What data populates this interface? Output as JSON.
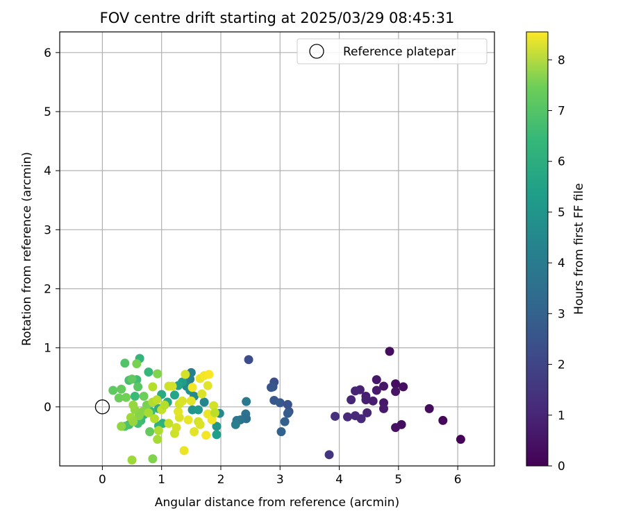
{
  "chart_data": {
    "type": "scatter",
    "title": "FOV centre drift starting at 2025/03/29 08:45:31",
    "xlabel": "Angular distance from reference (arcmin)",
    "ylabel": "Rotation from reference (arcmin)",
    "xlim": [
      -0.72,
      6.62
    ],
    "ylim": [
      -1.0,
      6.35
    ],
    "xticks": [
      "0",
      "1",
      "2",
      "3",
      "4",
      "5",
      "6"
    ],
    "yticks": [
      "0",
      "1",
      "2",
      "3",
      "4",
      "5",
      "6"
    ],
    "grid": true,
    "legend": {
      "placement": "top-right",
      "entries": [
        "Reference platepar"
      ]
    },
    "reference_point": {
      "x": 0,
      "y": 0,
      "label": "Reference platepar",
      "marker": "open-circle"
    },
    "colorbar": {
      "label": "Hours from first FF file",
      "colormap": "viridis",
      "range": [
        0,
        8.55
      ],
      "ticks": [
        "0",
        "1",
        "2",
        "3",
        "4",
        "5",
        "6",
        "7",
        "8"
      ]
    },
    "points": [
      {
        "x": 4.85,
        "y": 0.94,
        "c": 0.3
      },
      {
        "x": 6.05,
        "y": -0.55,
        "c": 0.05
      },
      {
        "x": 5.75,
        "y": -0.23,
        "c": 0.15
      },
      {
        "x": 5.52,
        "y": -0.03,
        "c": 0.25
      },
      {
        "x": 5.05,
        "y": -0.3,
        "c": 0.3
      },
      {
        "x": 4.95,
        "y": -0.35,
        "c": 0.4
      },
      {
        "x": 5.08,
        "y": 0.34,
        "c": 0.35
      },
      {
        "x": 4.95,
        "y": 0.39,
        "c": 0.3
      },
      {
        "x": 4.95,
        "y": 0.26,
        "c": 0.45
      },
      {
        "x": 4.75,
        "y": 0.35,
        "c": 0.5
      },
      {
        "x": 4.63,
        "y": 0.46,
        "c": 0.55
      },
      {
        "x": 4.63,
        "y": 0.28,
        "c": 0.6
      },
      {
        "x": 4.75,
        "y": 0.07,
        "c": 0.55
      },
      {
        "x": 4.75,
        "y": -0.03,
        "c": 0.6
      },
      {
        "x": 4.57,
        "y": 0.1,
        "c": 0.65
      },
      {
        "x": 4.45,
        "y": 0.18,
        "c": 0.7
      },
      {
        "x": 4.45,
        "y": 0.12,
        "c": 0.75
      },
      {
        "x": 4.35,
        "y": 0.29,
        "c": 0.8
      },
      {
        "x": 4.27,
        "y": 0.27,
        "c": 0.85
      },
      {
        "x": 4.2,
        "y": 0.12,
        "c": 0.9
      },
      {
        "x": 4.47,
        "y": -0.1,
        "c": 0.85
      },
      {
        "x": 4.37,
        "y": -0.2,
        "c": 0.95
      },
      {
        "x": 4.27,
        "y": -0.15,
        "c": 1.0
      },
      {
        "x": 4.14,
        "y": -0.17,
        "c": 1.05
      },
      {
        "x": 3.93,
        "y": -0.16,
        "c": 1.2
      },
      {
        "x": 3.83,
        "y": -0.81,
        "c": 1.3
      },
      {
        "x": 2.47,
        "y": 0.8,
        "c": 2.0
      },
      {
        "x": 2.9,
        "y": 0.42,
        "c": 2.1
      },
      {
        "x": 2.88,
        "y": 0.34,
        "c": 2.2
      },
      {
        "x": 2.85,
        "y": 0.33,
        "c": 2.3
      },
      {
        "x": 2.9,
        "y": 0.11,
        "c": 2.35
      },
      {
        "x": 3.0,
        "y": 0.07,
        "c": 2.4
      },
      {
        "x": 3.13,
        "y": 0.04,
        "c": 2.2
      },
      {
        "x": 3.15,
        "y": -0.08,
        "c": 2.15
      },
      {
        "x": 3.13,
        "y": -0.11,
        "c": 2.5
      },
      {
        "x": 3.08,
        "y": -0.25,
        "c": 2.6
      },
      {
        "x": 3.02,
        "y": -0.42,
        "c": 2.7
      },
      {
        "x": 2.43,
        "y": 0.09,
        "c": 3.5
      },
      {
        "x": 2.42,
        "y": -0.12,
        "c": 3.3
      },
      {
        "x": 2.43,
        "y": -0.2,
        "c": 3.1
      },
      {
        "x": 2.33,
        "y": -0.22,
        "c": 3.2
      },
      {
        "x": 2.27,
        "y": -0.23,
        "c": 3.4
      },
      {
        "x": 2.25,
        "y": -0.3,
        "c": 3.6
      },
      {
        "x": 1.98,
        "y": -0.11,
        "c": 4.0
      },
      {
        "x": 1.93,
        "y": -0.33,
        "c": 4.5
      },
      {
        "x": 1.93,
        "y": -0.47,
        "c": 4.8
      },
      {
        "x": 1.72,
        "y": 0.08,
        "c": 3.9
      },
      {
        "x": 1.5,
        "y": 0.58,
        "c": 3.7
      },
      {
        "x": 1.48,
        "y": 0.47,
        "c": 3.8
      },
      {
        "x": 1.42,
        "y": 0.35,
        "c": 4.0
      },
      {
        "x": 1.48,
        "y": 0.28,
        "c": 4.3
      },
      {
        "x": 1.55,
        "y": 0.18,
        "c": 4.1
      },
      {
        "x": 1.52,
        "y": -0.05,
        "c": 4.4
      },
      {
        "x": 1.62,
        "y": -0.05,
        "c": 4.6
      },
      {
        "x": 1.35,
        "y": 0.42,
        "c": 4.7
      },
      {
        "x": 1.28,
        "y": 0.36,
        "c": 4.9
      },
      {
        "x": 1.22,
        "y": 0.2,
        "c": 5.0
      },
      {
        "x": 1.1,
        "y": 0.08,
        "c": 5.1
      },
      {
        "x": 1.0,
        "y": 0.21,
        "c": 5.2
      },
      {
        "x": 0.95,
        "y": -0.03,
        "c": 5.3
      },
      {
        "x": 1.02,
        "y": -0.28,
        "c": 5.4
      },
      {
        "x": 0.95,
        "y": -0.32,
        "c": 5.5
      },
      {
        "x": 0.82,
        "y": -0.08,
        "c": 5.7
      },
      {
        "x": 0.7,
        "y": -0.13,
        "c": 5.6
      },
      {
        "x": 0.65,
        "y": -0.23,
        "c": 5.8
      },
      {
        "x": 0.6,
        "y": -0.28,
        "c": 5.9
      },
      {
        "x": 0.45,
        "y": -0.3,
        "c": 6.0
      },
      {
        "x": 0.38,
        "y": -0.33,
        "c": 6.1
      },
      {
        "x": 0.55,
        "y": 0.18,
        "c": 5.8
      },
      {
        "x": 0.63,
        "y": 0.82,
        "c": 5.6
      },
      {
        "x": 0.78,
        "y": 0.59,
        "c": 5.7
      },
      {
        "x": 0.58,
        "y": 0.46,
        "c": 5.9
      },
      {
        "x": 0.45,
        "y": 0.45,
        "c": 6.0
      },
      {
        "x": 0.38,
        "y": 0.74,
        "c": 6.2
      },
      {
        "x": 0.6,
        "y": 0.34,
        "c": 6.3
      },
      {
        "x": 0.5,
        "y": 0.47,
        "c": 6.4
      },
      {
        "x": 0.32,
        "y": 0.3,
        "c": 6.5
      },
      {
        "x": 0.18,
        "y": 0.28,
        "c": 6.4
      },
      {
        "x": 0.28,
        "y": 0.15,
        "c": 6.6
      },
      {
        "x": 0.4,
        "y": 0.16,
        "c": 6.7
      },
      {
        "x": 0.58,
        "y": 0.73,
        "c": 6.8
      },
      {
        "x": 0.93,
        "y": 0.56,
        "c": 6.9
      },
      {
        "x": 0.7,
        "y": 0.18,
        "c": 6.6
      },
      {
        "x": 0.75,
        "y": 0.03,
        "c": 6.8
      },
      {
        "x": 0.8,
        "y": -0.42,
        "c": 6.5
      },
      {
        "x": 0.68,
        "y": -0.08,
        "c": 7.0
      },
      {
        "x": 0.55,
        "y": -0.05,
        "c": 7.1
      },
      {
        "x": 0.52,
        "y": 0.03,
        "c": 7.2
      },
      {
        "x": 0.62,
        "y": -0.15,
        "c": 7.0
      },
      {
        "x": 0.48,
        "y": -0.18,
        "c": 7.3
      },
      {
        "x": 0.32,
        "y": -0.33,
        "c": 7.1
      },
      {
        "x": 0.52,
        "y": -0.25,
        "c": 7.2
      },
      {
        "x": 0.5,
        "y": -0.9,
        "c": 7.3
      },
      {
        "x": 0.85,
        "y": -0.88,
        "c": 6.9
      },
      {
        "x": 0.93,
        "y": -0.55,
        "c": 7.4
      },
      {
        "x": 0.95,
        "y": -0.4,
        "c": 7.5
      },
      {
        "x": 0.88,
        "y": -0.2,
        "c": 7.6
      },
      {
        "x": 0.78,
        "y": -0.1,
        "c": 7.4
      },
      {
        "x": 0.85,
        "y": 0.08,
        "c": 7.5
      },
      {
        "x": 0.85,
        "y": 0.34,
        "c": 7.6
      },
      {
        "x": 0.92,
        "y": 0.12,
        "c": 7.7
      },
      {
        "x": 1.0,
        "y": -0.05,
        "c": 7.8
      },
      {
        "x": 1.05,
        "y": 0.03,
        "c": 7.6
      },
      {
        "x": 1.12,
        "y": -0.28,
        "c": 7.8
      },
      {
        "x": 1.12,
        "y": 0.35,
        "c": 7.9
      },
      {
        "x": 1.18,
        "y": 0.35,
        "c": 8.0
      },
      {
        "x": 1.22,
        "y": -0.45,
        "c": 7.9
      },
      {
        "x": 1.25,
        "y": -0.35,
        "c": 8.0
      },
      {
        "x": 1.3,
        "y": -0.18,
        "c": 8.1
      },
      {
        "x": 1.28,
        "y": -0.08,
        "c": 8.2
      },
      {
        "x": 1.3,
        "y": 0.05,
        "c": 8.0
      },
      {
        "x": 1.35,
        "y": 0.1,
        "c": 8.1
      },
      {
        "x": 1.4,
        "y": 0.55,
        "c": 8.0
      },
      {
        "x": 1.45,
        "y": -0.22,
        "c": 8.3
      },
      {
        "x": 1.5,
        "y": 0.1,
        "c": 8.2
      },
      {
        "x": 1.52,
        "y": 0.33,
        "c": 8.4
      },
      {
        "x": 1.38,
        "y": -0.74,
        "c": 8.3
      },
      {
        "x": 1.55,
        "y": -0.42,
        "c": 8.2
      },
      {
        "x": 1.62,
        "y": -0.25,
        "c": 8.0
      },
      {
        "x": 1.65,
        "y": -0.3,
        "c": 8.1
      },
      {
        "x": 1.65,
        "y": 0.48,
        "c": 8.3
      },
      {
        "x": 1.72,
        "y": 0.53,
        "c": 8.4
      },
      {
        "x": 1.8,
        "y": 0.55,
        "c": 8.5
      },
      {
        "x": 1.75,
        "y": -0.48,
        "c": 8.4
      },
      {
        "x": 1.78,
        "y": 0.36,
        "c": 8.2
      },
      {
        "x": 1.78,
        "y": -0.12,
        "c": 8.3
      },
      {
        "x": 1.85,
        "y": -0.22,
        "c": 8.4
      },
      {
        "x": 1.88,
        "y": 0.02,
        "c": 8.0
      },
      {
        "x": 1.9,
        "y": -0.1,
        "c": 7.7
      },
      {
        "x": 1.68,
        "y": 0.22,
        "c": 8.1
      }
    ]
  }
}
